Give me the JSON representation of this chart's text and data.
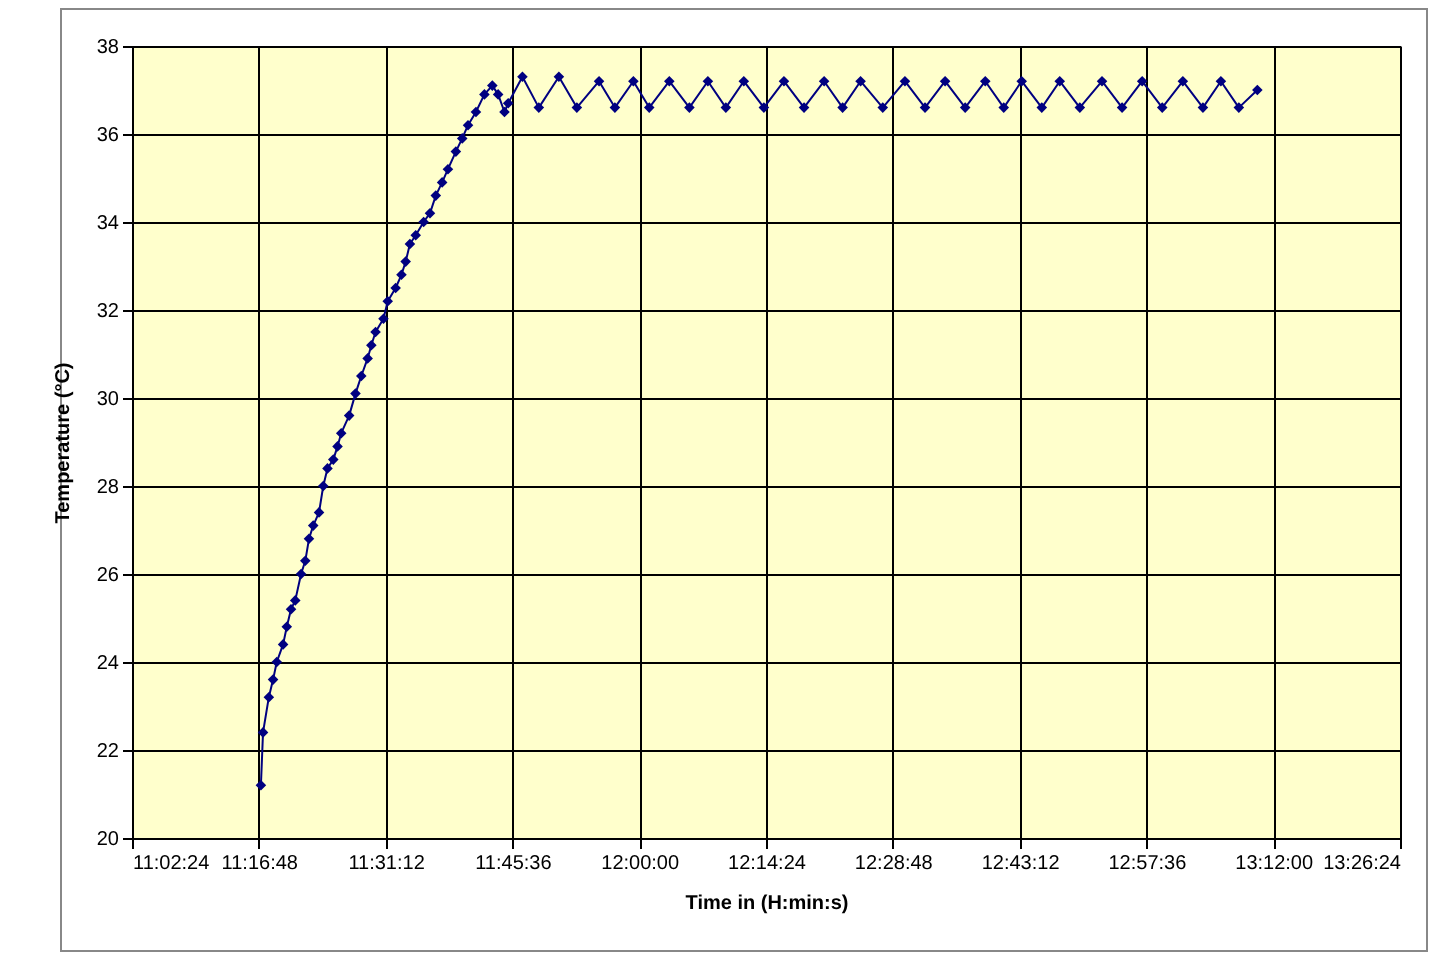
{
  "chart_data": {
    "type": "line",
    "xlabel": "Time in (H:min:s)",
    "ylabel": "Temperature (°C)",
    "xlim": [
      11.04,
      13.44
    ],
    "xticks": [
      {
        "value": 11.04,
        "label": "11:02:24"
      },
      {
        "value": 11.28,
        "label": "11:16:48"
      },
      {
        "value": 11.52,
        "label": "11:31:12"
      },
      {
        "value": 11.76,
        "label": "11:45:36"
      },
      {
        "value": 12,
        "label": "12:00:00"
      },
      {
        "value": 12.24,
        "label": "12:14:24"
      },
      {
        "value": 12.48,
        "label": "12:28:48"
      },
      {
        "value": 12.72,
        "label": "12:43:12"
      },
      {
        "value": 12.96,
        "label": "12:57:36"
      },
      {
        "value": 13.2,
        "label": "13:12:00"
      },
      {
        "value": 13.44,
        "label": "13:26:24"
      }
    ],
    "ylim": [
      20,
      38
    ],
    "yticks": [
      20,
      22,
      24,
      26,
      28,
      30,
      32,
      34,
      36,
      38
    ],
    "grid": true,
    "marker": "diamond",
    "line_style": "solid",
    "series": [
      {
        "color": "#000080",
        "x": [
          11.284,
          11.288,
          11.299,
          11.307,
          11.314,
          11.326,
          11.333,
          11.341,
          11.349,
          11.36,
          11.368,
          11.375,
          11.383,
          11.394,
          11.402,
          11.41,
          11.421,
          11.429,
          11.436,
          11.451,
          11.463,
          11.474,
          11.486,
          11.493,
          11.501,
          11.516,
          11.524,
          11.539,
          11.55,
          11.558,
          11.566,
          11.577,
          11.592,
          11.604,
          11.615,
          11.627,
          11.638,
          11.653,
          11.665,
          11.676,
          11.691,
          11.707,
          11.722,
          11.733,
          11.745,
          11.752,
          11.779,
          11.81,
          11.848,
          11.882,
          11.924,
          11.954,
          11.989,
          12.019,
          12.057,
          12.095,
          12.13,
          12.164,
          12.198,
          12.236,
          12.274,
          12.312,
          12.35,
          12.385,
          12.419,
          12.461,
          12.503,
          12.541,
          12.579,
          12.617,
          12.655,
          12.69,
          12.724,
          12.762,
          12.796,
          12.834,
          12.876,
          12.914,
          12.952,
          12.99,
          13.029,
          13.067,
          13.101,
          13.135,
          13.17
        ],
        "values": [
          21.2,
          22.4,
          23.2,
          23.6,
          24.0,
          24.4,
          24.8,
          25.2,
          25.4,
          26.0,
          26.3,
          26.8,
          27.1,
          27.4,
          28.0,
          28.4,
          28.6,
          28.9,
          29.2,
          29.6,
          30.1,
          30.5,
          30.9,
          31.2,
          31.5,
          31.8,
          32.2,
          32.5,
          32.8,
          33.1,
          33.5,
          33.7,
          34.0,
          34.2,
          34.6,
          34.9,
          35.2,
          35.6,
          35.9,
          36.2,
          36.5,
          36.9,
          37.1,
          36.9,
          36.5,
          36.7,
          37.3,
          36.6,
          37.3,
          36.6,
          37.2,
          36.6,
          37.2,
          36.6,
          37.2,
          36.6,
          37.2,
          36.6,
          37.2,
          36.6,
          37.2,
          36.6,
          37.2,
          36.6,
          37.2,
          36.6,
          37.2,
          36.6,
          37.2,
          36.6,
          37.2,
          36.6,
          37.2,
          36.6,
          37.2,
          36.6,
          37.2,
          36.6,
          37.2,
          36.6,
          37.2,
          36.6,
          37.2,
          36.6,
          37.0
        ]
      }
    ]
  }
}
